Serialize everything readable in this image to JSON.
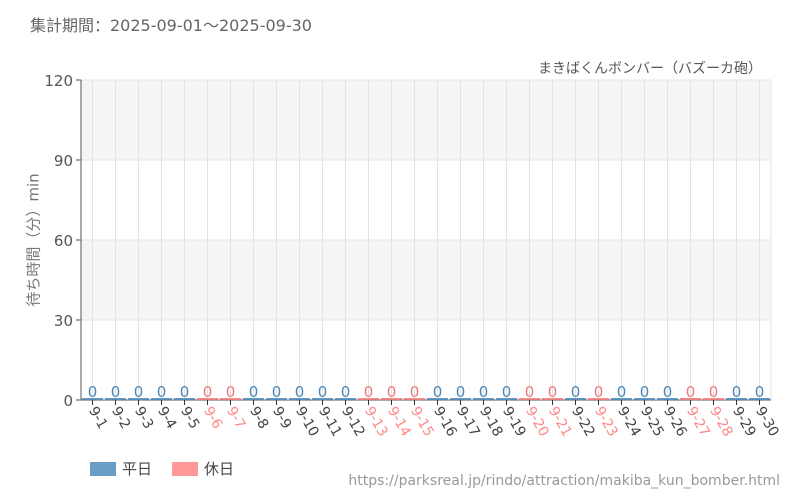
{
  "header": {
    "period": "集計期間：2025-09-01～2025-09-30",
    "attraction": "まきばくんボンバー（バズーカ砲）"
  },
  "legend": {
    "weekday": {
      "label": "平日",
      "color": "#6a9ec6"
    },
    "holiday": {
      "label": "休日",
      "color": "#ff9999"
    }
  },
  "footer": {
    "url": "https://parksreal.jp/rindo/attraction/makiba_kun_bomber.html"
  },
  "colors": {
    "weekday_bar": "#4a86b8",
    "holiday_bar": "#f07878",
    "weekday_tick": "#444444",
    "holiday_tick": "#ff8888"
  },
  "chart_data": {
    "type": "bar",
    "title": "まきばくんボンバー（バズーカ砲）",
    "subtitle": "集計期間：2025-09-01～2025-09-30",
    "xlabel": "",
    "ylabel": "待ち時間（分）min",
    "ylim": [
      0,
      120
    ],
    "yticks": [
      0,
      30,
      60,
      90,
      120
    ],
    "grid": true,
    "legend_position": "bottom-left",
    "categories": [
      "9-1",
      "9-2",
      "9-3",
      "9-4",
      "9-5",
      "9-6",
      "9-7",
      "9-8",
      "9-9",
      "9-10",
      "9-11",
      "9-12",
      "9-13",
      "9-14",
      "9-15",
      "9-16",
      "9-17",
      "9-18",
      "9-19",
      "9-20",
      "9-21",
      "9-22",
      "9-23",
      "9-24",
      "9-25",
      "9-26",
      "9-27",
      "9-28",
      "9-29",
      "9-30"
    ],
    "day_type": [
      "平日",
      "平日",
      "平日",
      "平日",
      "平日",
      "休日",
      "休日",
      "平日",
      "平日",
      "平日",
      "平日",
      "平日",
      "休日",
      "休日",
      "休日",
      "平日",
      "平日",
      "平日",
      "平日",
      "休日",
      "休日",
      "平日",
      "休日",
      "平日",
      "平日",
      "平日",
      "休日",
      "休日",
      "平日",
      "平日"
    ],
    "values": [
      0,
      0,
      0,
      0,
      0,
      0,
      0,
      0,
      0,
      0,
      0,
      0,
      0,
      0,
      0,
      0,
      0,
      0,
      0,
      0,
      0,
      0,
      0,
      0,
      0,
      0,
      0,
      0,
      0,
      0
    ],
    "series": [
      {
        "name": "待ち時間",
        "values": [
          0,
          0,
          0,
          0,
          0,
          0,
          0,
          0,
          0,
          0,
          0,
          0,
          0,
          0,
          0,
          0,
          0,
          0,
          0,
          0,
          0,
          0,
          0,
          0,
          0,
          0,
          0,
          0,
          0,
          0
        ]
      }
    ]
  }
}
